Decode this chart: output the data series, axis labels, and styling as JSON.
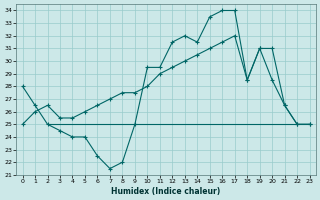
{
  "xlabel": "Humidex (Indice chaleur)",
  "background_color": "#cce8e8",
  "grid_color": "#99cccc",
  "line_color": "#006666",
  "xlim": [
    -0.5,
    23.5
  ],
  "ylim": [
    21,
    34.5
  ],
  "yticks": [
    21,
    22,
    23,
    24,
    25,
    26,
    27,
    28,
    29,
    30,
    31,
    32,
    33,
    34
  ],
  "xticks": [
    0,
    1,
    2,
    3,
    4,
    5,
    6,
    7,
    8,
    9,
    10,
    11,
    12,
    13,
    14,
    15,
    16,
    17,
    18,
    19,
    20,
    21,
    22,
    23
  ],
  "curve1_x": [
    0,
    1,
    2,
    3,
    4,
    5,
    6,
    7,
    8,
    9,
    10,
    11,
    12,
    13,
    14,
    15,
    16,
    17,
    18,
    19,
    20,
    21,
    22,
    23
  ],
  "curve1_y": [
    28,
    26.5,
    25,
    24.5,
    24,
    24,
    22.5,
    21.5,
    22,
    25,
    29.5,
    29.5,
    31.5,
    32,
    31.5,
    33.5,
    34,
    34,
    28.5,
    31,
    28.5,
    26.5,
    25,
    25
  ],
  "curve2_x": [
    2,
    3,
    4,
    5,
    6,
    7,
    8,
    9,
    10,
    11,
    12,
    13,
    14,
    15,
    16,
    17,
    18,
    19,
    20,
    21,
    22,
    23
  ],
  "curve2_y": [
    25,
    25,
    25,
    25,
    25,
    25,
    25,
    25,
    25,
    25,
    25,
    25,
    25,
    25,
    25,
    25,
    25,
    25,
    25,
    25,
    25,
    25
  ],
  "curve3_x": [
    0,
    1,
    2,
    3,
    4,
    5,
    6,
    7,
    8,
    9,
    10,
    11,
    12,
    13,
    14,
    15,
    16,
    17,
    18,
    19,
    20,
    21,
    22,
    23
  ],
  "curve3_y": [
    25,
    26,
    26.5,
    25.5,
    25.5,
    26,
    26.5,
    27,
    27.5,
    27.5,
    28,
    29,
    29.5,
    30,
    30.5,
    31,
    31.5,
    32,
    28.5,
    31,
    31,
    26.5,
    25,
    25
  ]
}
